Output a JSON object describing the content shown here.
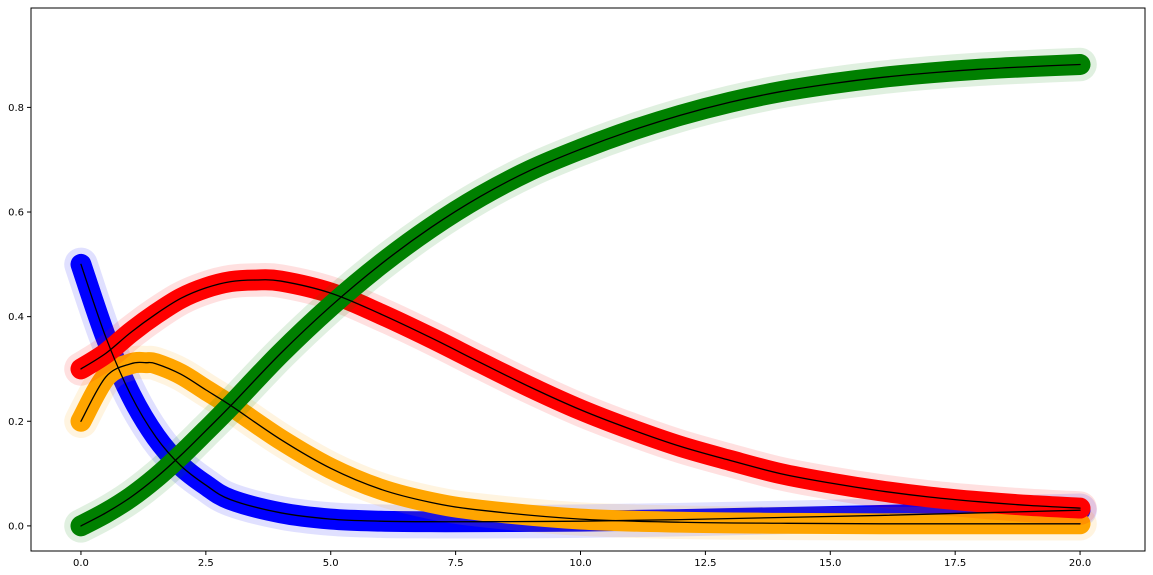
{
  "chart_data": {
    "type": "line",
    "title": "",
    "xlabel": "",
    "ylabel": "",
    "xlim": [
      -1.0,
      21.3
    ],
    "ylim": [
      -0.048,
      0.99
    ],
    "grid": false,
    "legend": "none",
    "x_ticks": [
      {
        "value": 0.0,
        "label": "0.0"
      },
      {
        "value": 2.5,
        "label": "2.5"
      },
      {
        "value": 5.0,
        "label": "5.0"
      },
      {
        "value": 7.5,
        "label": "7.5"
      },
      {
        "value": 10.0,
        "label": "10.0"
      },
      {
        "value": 12.5,
        "label": "12.5"
      },
      {
        "value": 15.0,
        "label": "15.0"
      },
      {
        "value": 17.5,
        "label": "17.5"
      },
      {
        "value": 20.0,
        "label": "20.0"
      }
    ],
    "y_ticks": [
      {
        "value": 0.0,
        "label": "0.0"
      },
      {
        "value": 0.2,
        "label": "0.2"
      },
      {
        "value": 0.4,
        "label": "0.4"
      },
      {
        "value": 0.6,
        "label": "0.6"
      },
      {
        "value": 0.8,
        "label": "0.8"
      }
    ],
    "band_half_width": 0.02,
    "series": [
      {
        "color": "#0000ff",
        "x": [
          0,
          0.5,
          1,
          1.5,
          2,
          2.5,
          3,
          4,
          5,
          6,
          7,
          8,
          10,
          12,
          14,
          16,
          18,
          20
        ],
        "y": [
          0.5,
          0.36,
          0.25,
          0.17,
          0.115,
          0.078,
          0.05,
          0.025,
          0.013,
          0.009,
          0.008,
          0.008,
          0.009,
          0.012,
          0.016,
          0.02,
          0.025,
          0.03
        ]
      },
      {
        "color": "#ffa500",
        "x": [
          0,
          0.5,
          1,
          1.3,
          1.5,
          2,
          2.5,
          3,
          4,
          5,
          6,
          7,
          8,
          10,
          12,
          14,
          16,
          18,
          20
        ],
        "y": [
          0.2,
          0.285,
          0.31,
          0.312,
          0.31,
          0.29,
          0.26,
          0.23,
          0.165,
          0.11,
          0.07,
          0.045,
          0.03,
          0.013,
          0.007,
          0.005,
          0.004,
          0.004,
          0.004
        ]
      },
      {
        "color": "#ff0000",
        "x": [
          0,
          0.5,
          1,
          1.5,
          2,
          2.5,
          3,
          3.5,
          4,
          5,
          6,
          7,
          8,
          9,
          10,
          11,
          12,
          13,
          14,
          15,
          16,
          17,
          18,
          19,
          20
        ],
        "y": [
          0.3,
          0.33,
          0.37,
          0.405,
          0.435,
          0.455,
          0.467,
          0.47,
          0.468,
          0.445,
          0.405,
          0.36,
          0.312,
          0.265,
          0.222,
          0.185,
          0.152,
          0.125,
          0.1,
          0.082,
          0.067,
          0.055,
          0.046,
          0.039,
          0.034
        ]
      },
      {
        "color": "#008000",
        "x": [
          0,
          0.5,
          1,
          1.5,
          2,
          2.5,
          3,
          4,
          5,
          6,
          7,
          8,
          9,
          10,
          11,
          12,
          13,
          14,
          15,
          16,
          17,
          18,
          19,
          20
        ],
        "y": [
          0.0,
          0.025,
          0.055,
          0.092,
          0.135,
          0.182,
          0.23,
          0.33,
          0.42,
          0.5,
          0.57,
          0.63,
          0.68,
          0.72,
          0.755,
          0.785,
          0.81,
          0.83,
          0.845,
          0.857,
          0.866,
          0.873,
          0.878,
          0.882
        ]
      }
    ],
    "mean_line_color": "#000000"
  }
}
